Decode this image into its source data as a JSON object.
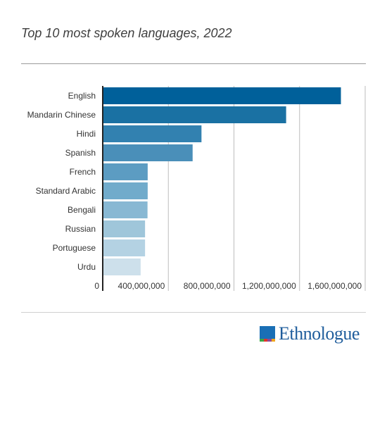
{
  "title": "Top 10 most spoken languages, 2022",
  "logo": {
    "text": "Ethnologue",
    "icon": "ethnologue-logo-icon"
  },
  "colors": {
    "bars": [
      "#00609a",
      "#1a71a3",
      "#3281b0",
      "#4a8fb9",
      "#5c9cc2",
      "#71abcb",
      "#88b8d3",
      "#9fc6da",
      "#b4d2e3",
      "#cde0eb"
    ],
    "axis": "#222222",
    "grid": "#bdbdbd",
    "logo": "#1a6fb5"
  },
  "chart_data": {
    "type": "bar",
    "orientation": "horizontal",
    "categories": [
      "English",
      "Mandarin Chinese",
      "Hindi",
      "Spanish",
      "French",
      "Standard Arabic",
      "Bengali",
      "Russian",
      "Portuguese",
      "Urdu"
    ],
    "values": [
      1452000000,
      1118000000,
      602000000,
      548000000,
      274000000,
      274000000,
      273000000,
      258000000,
      258000000,
      231000000
    ],
    "xlim": [
      0,
      1600000000
    ],
    "xticks": [
      0,
      400000000,
      800000000,
      1200000000,
      1600000000
    ],
    "xtick_labels": [
      "0",
      "400,000,000",
      "800,000,000",
      "1,200,000,000",
      "1,600,000,000"
    ],
    "grid": true,
    "legend": "none"
  }
}
